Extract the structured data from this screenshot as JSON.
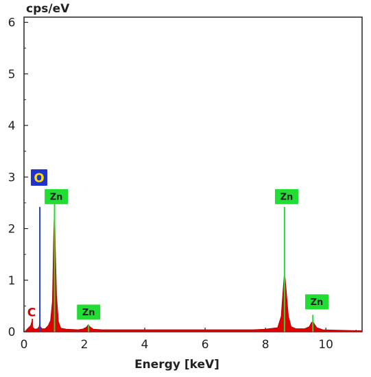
{
  "chart_data": {
    "type": "line",
    "title": "",
    "xlabel": "Energy [keV]",
    "ylabel": "cps/eV",
    "xlim": [
      0,
      11.2
    ],
    "ylim": [
      0,
      6.1
    ],
    "x_ticks": [
      0,
      2,
      4,
      6,
      8,
      10
    ],
    "y_ticks": [
      0,
      1,
      2,
      3,
      4,
      5,
      6
    ],
    "grid": false,
    "fill_color": "#e00000",
    "spectrum": [
      [
        0.05,
        0.02
      ],
      [
        0.15,
        0.08
      ],
      [
        0.22,
        0.12
      ],
      [
        0.26,
        0.2
      ],
      [
        0.3,
        0.08
      ],
      [
        0.36,
        0.05
      ],
      [
        0.45,
        0.06
      ],
      [
        0.5,
        0.1
      ],
      [
        0.52,
        0.2
      ],
      [
        0.54,
        0.1
      ],
      [
        0.6,
        0.06
      ],
      [
        0.7,
        0.06
      ],
      [
        0.8,
        0.12
      ],
      [
        0.88,
        0.22
      ],
      [
        0.94,
        0.6
      ],
      [
        0.98,
        1.8
      ],
      [
        1.01,
        2.5
      ],
      [
        1.04,
        1.6
      ],
      [
        1.08,
        0.7
      ],
      [
        1.14,
        0.2
      ],
      [
        1.22,
        0.07
      ],
      [
        1.4,
        0.05
      ],
      [
        1.8,
        0.04
      ],
      [
        2.0,
        0.06
      ],
      [
        2.08,
        0.1
      ],
      [
        2.13,
        0.14
      ],
      [
        2.2,
        0.09
      ],
      [
        2.3,
        0.05
      ],
      [
        2.6,
        0.04
      ],
      [
        3.0,
        0.04
      ],
      [
        4.0,
        0.04
      ],
      [
        5.0,
        0.04
      ],
      [
        6.0,
        0.04
      ],
      [
        7.0,
        0.04
      ],
      [
        7.6,
        0.04
      ],
      [
        8.0,
        0.05
      ],
      [
        8.4,
        0.08
      ],
      [
        8.52,
        0.3
      ],
      [
        8.58,
        0.8
      ],
      [
        8.62,
        1.1
      ],
      [
        8.65,
        1.05
      ],
      [
        8.7,
        0.7
      ],
      [
        8.76,
        0.3
      ],
      [
        8.85,
        0.1
      ],
      [
        9.0,
        0.06
      ],
      [
        9.3,
        0.06
      ],
      [
        9.45,
        0.1
      ],
      [
        9.52,
        0.18
      ],
      [
        9.57,
        0.2
      ],
      [
        9.62,
        0.15
      ],
      [
        9.7,
        0.08
      ],
      [
        9.9,
        0.04
      ],
      [
        10.4,
        0.03
      ],
      [
        11.2,
        0.02
      ]
    ],
    "element_lines": [
      {
        "element": "C",
        "energy": 0.277,
        "height": 0.25,
        "color": "#e00000"
      },
      {
        "element": "O",
        "energy": 0.525,
        "height": 2.42,
        "color": "#1f3fd0"
      },
      {
        "element": "Zn",
        "energy": 1.012,
        "height": 2.5,
        "color": "#22dd33"
      },
      {
        "element": "Zn",
        "energy": 2.14,
        "height": 0.14,
        "color": "#22dd33"
      },
      {
        "element": "Zn",
        "energy": 8.63,
        "height": 2.42,
        "color": "#22dd33"
      },
      {
        "element": "Zn",
        "energy": 9.57,
        "height": 0.33,
        "color": "#22dd33"
      }
    ],
    "element_labels": [
      {
        "text": "C",
        "energy": 0.25,
        "y": 0.38,
        "style": "plain",
        "color": "#e00000"
      },
      {
        "text": "O",
        "energy": 0.5,
        "y": 2.99,
        "style": "box",
        "bg": "#2233cc",
        "color": "#ffdd00"
      },
      {
        "text": "Zn",
        "energy": 1.07,
        "y": 2.62,
        "style": "box",
        "bg": "#22dd33",
        "color": "#222222"
      },
      {
        "text": "Zn",
        "energy": 2.14,
        "y": 0.38,
        "style": "box",
        "bg": "#22dd33",
        "color": "#222222"
      },
      {
        "text": "Zn",
        "energy": 8.7,
        "y": 2.62,
        "style": "box",
        "bg": "#22dd33",
        "color": "#222222"
      },
      {
        "text": "Zn",
        "energy": 9.7,
        "y": 0.58,
        "style": "box",
        "bg": "#22dd33",
        "color": "#222222"
      }
    ]
  }
}
